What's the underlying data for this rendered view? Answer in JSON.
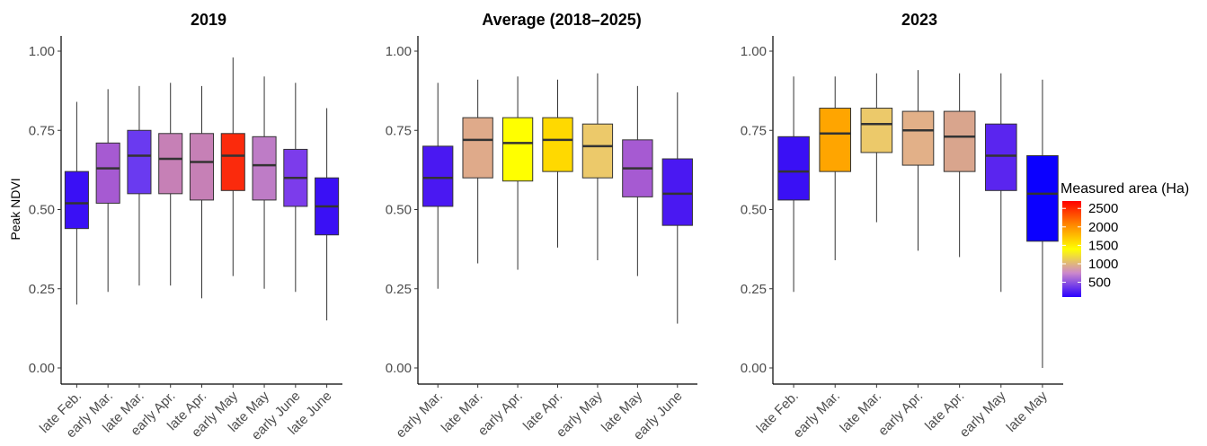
{
  "chart_data": [
    {
      "type": "box",
      "title": "2019",
      "ylabel": "Peak NDVI",
      "ylim": [
        0,
        1
      ],
      "yticks": [
        "0.00",
        "0.25",
        "0.50",
        "0.75",
        "1.00"
      ],
      "categories": [
        "late Feb.",
        "early Mar.",
        "late Mar.",
        "early Apr.",
        "late Apr.",
        "early May",
        "late May",
        "early June",
        "late June"
      ],
      "boxes": [
        {
          "min": 0.2,
          "q1": 0.44,
          "median": 0.52,
          "q3": 0.62,
          "max": 0.84,
          "area": 150,
          "color": "#3a10f5"
        },
        {
          "min": 0.24,
          "q1": 0.52,
          "median": 0.63,
          "q3": 0.71,
          "max": 0.88,
          "area": 700,
          "color": "#a65ad2"
        },
        {
          "min": 0.26,
          "q1": 0.55,
          "median": 0.67,
          "q3": 0.75,
          "max": 0.89,
          "area": 400,
          "color": "#6a3af0"
        },
        {
          "min": 0.26,
          "q1": 0.55,
          "median": 0.66,
          "q3": 0.74,
          "max": 0.9,
          "area": 900,
          "color": "#c680b6"
        },
        {
          "min": 0.22,
          "q1": 0.53,
          "median": 0.65,
          "q3": 0.74,
          "max": 0.89,
          "area": 900,
          "color": "#c680b6"
        },
        {
          "min": 0.29,
          "q1": 0.56,
          "median": 0.67,
          "q3": 0.74,
          "max": 0.98,
          "area": 2500,
          "color": "#fb2a0c"
        },
        {
          "min": 0.25,
          "q1": 0.53,
          "median": 0.64,
          "q3": 0.73,
          "max": 0.92,
          "area": 800,
          "color": "#be7cc6"
        },
        {
          "min": 0.24,
          "q1": 0.51,
          "median": 0.6,
          "q3": 0.69,
          "max": 0.9,
          "area": 450,
          "color": "#7c3ceb"
        },
        {
          "min": 0.15,
          "q1": 0.42,
          "median": 0.51,
          "q3": 0.6,
          "max": 0.82,
          "area": 150,
          "color": "#3a10f5"
        }
      ]
    },
    {
      "type": "box",
      "title": "Average (2018–2025)",
      "ylim": [
        0,
        1
      ],
      "yticks": [
        "0.00",
        "0.25",
        "0.50",
        "0.75",
        "1.00"
      ],
      "categories": [
        "early Mar.",
        "late Mar.",
        "early Apr.",
        "late Apr.",
        "early May",
        "late May",
        "early June"
      ],
      "boxes": [
        {
          "min": 0.25,
          "q1": 0.51,
          "median": 0.6,
          "q3": 0.7,
          "max": 0.9,
          "area": 200,
          "color": "#4a18f2"
        },
        {
          "min": 0.33,
          "q1": 0.6,
          "median": 0.72,
          "q3": 0.79,
          "max": 0.91,
          "area": 1000,
          "color": "#dfaa8a"
        },
        {
          "min": 0.31,
          "q1": 0.59,
          "median": 0.71,
          "q3": 0.79,
          "max": 0.92,
          "area": 1600,
          "color": "#ffff00"
        },
        {
          "min": 0.38,
          "q1": 0.62,
          "median": 0.72,
          "q3": 0.79,
          "max": 0.91,
          "area": 1500,
          "color": "#ffd900"
        },
        {
          "min": 0.34,
          "q1": 0.6,
          "median": 0.7,
          "q3": 0.77,
          "max": 0.93,
          "area": 1100,
          "color": "#ecc96a"
        },
        {
          "min": 0.29,
          "q1": 0.54,
          "median": 0.63,
          "q3": 0.72,
          "max": 0.89,
          "area": 600,
          "color": "#a65ad2"
        },
        {
          "min": 0.14,
          "q1": 0.45,
          "median": 0.55,
          "q3": 0.66,
          "max": 0.87,
          "area": 200,
          "color": "#4a18f2"
        }
      ]
    },
    {
      "type": "box",
      "title": "2023",
      "ylim": [
        0,
        1
      ],
      "yticks": [
        "0.00",
        "0.25",
        "0.50",
        "0.75",
        "1.00"
      ],
      "categories": [
        "late Feb.",
        "early Mar.",
        "late Mar.",
        "early Apr.",
        "late Apr.",
        "early May",
        "late May"
      ],
      "boxes": [
        {
          "min": 0.24,
          "q1": 0.53,
          "median": 0.62,
          "q3": 0.73,
          "max": 0.92,
          "area": 150,
          "color": "#3a10f5"
        },
        {
          "min": 0.34,
          "q1": 0.62,
          "median": 0.74,
          "q3": 0.82,
          "max": 0.92,
          "area": 1800,
          "color": "#ffa500"
        },
        {
          "min": 0.46,
          "q1": 0.68,
          "median": 0.77,
          "q3": 0.82,
          "max": 0.93,
          "area": 1100,
          "color": "#ecc96a"
        },
        {
          "min": 0.37,
          "q1": 0.64,
          "median": 0.75,
          "q3": 0.81,
          "max": 0.94,
          "area": 1000,
          "color": "#e2b088"
        },
        {
          "min": 0.35,
          "q1": 0.62,
          "median": 0.73,
          "q3": 0.81,
          "max": 0.93,
          "area": 950,
          "color": "#d9a58d"
        },
        {
          "min": 0.24,
          "q1": 0.56,
          "median": 0.67,
          "q3": 0.77,
          "max": 0.93,
          "area": 300,
          "color": "#5a25ef"
        },
        {
          "min": 0.0,
          "q1": 0.4,
          "median": 0.55,
          "q3": 0.67,
          "max": 0.91,
          "area": 100,
          "color": "#0b00ff"
        }
      ]
    }
  ],
  "legend": {
    "title": "Measured area (Ha)",
    "labels": [
      "2500",
      "2000",
      "1500",
      "1000",
      "500"
    ],
    "values": [
      2500,
      2000,
      1500,
      1000,
      500
    ],
    "range": [
      100,
      2700
    ],
    "gradient_colors": [
      "#ff0000",
      "#ff8800",
      "#ffff00",
      "#cc88cc",
      "#2b00ff"
    ]
  }
}
